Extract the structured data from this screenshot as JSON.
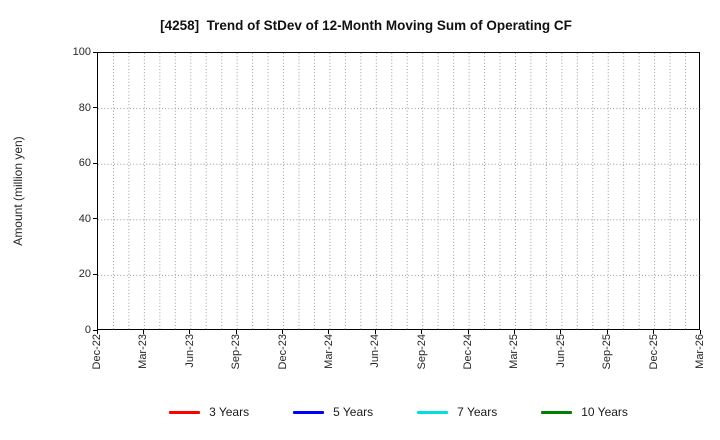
{
  "chart_data": {
    "type": "line",
    "title": "[4258]  Trend of StDev of 12-Month Moving Sum of Operating CF",
    "xlabel": "",
    "ylabel": "Amount (million yen)",
    "ylim": [
      0,
      100
    ],
    "yticks": [
      0,
      20,
      40,
      60,
      80,
      100
    ],
    "x_tick_labels": [
      "Dec-22",
      "Mar-23",
      "Jun-23",
      "Sep-23",
      "Dec-23",
      "Mar-24",
      "Jun-24",
      "Sep-24",
      "Dec-24",
      "Mar-25",
      "Jun-25",
      "Sep-25",
      "Dec-25",
      "Mar-26"
    ],
    "x_range": [
      "Dec-22",
      "Mar-26"
    ],
    "x_total_months": 39,
    "x_tick_interval_months": 3,
    "grid": {
      "visible": true,
      "style": "dotted",
      "color": "#9a9a9a",
      "vertical_interval_months": 1
    },
    "frame_color": "#000000",
    "text_color": "#262626",
    "legend": {
      "position": "bottom-center",
      "entries": [
        {
          "label": "3 Years",
          "color": "#ff0000"
        },
        {
          "label": "5 Years",
          "color": "#0000ff"
        },
        {
          "label": "7 Years",
          "color": "#00e0e0"
        },
        {
          "label": "10 Years",
          "color": "#008000"
        }
      ]
    },
    "series": [
      {
        "name": "3 Years",
        "color": "#ff0000",
        "values": []
      },
      {
        "name": "5 Years",
        "color": "#0000ff",
        "values": []
      },
      {
        "name": "7 Years",
        "color": "#00e0e0",
        "values": []
      },
      {
        "name": "10 Years",
        "color": "#008000",
        "values": []
      }
    ]
  }
}
